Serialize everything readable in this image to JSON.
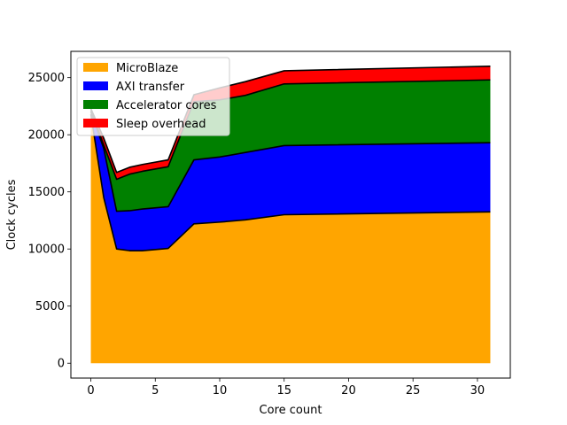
{
  "chart_data": {
    "type": "area",
    "title": "",
    "xlabel": "Core count",
    "ylabel": "Clock cycles",
    "xlim": [
      -1.55,
      32.55
    ],
    "ylim": [
      -1300,
      27300
    ],
    "xticks": [
      0,
      5,
      10,
      15,
      20,
      25,
      30
    ],
    "yticks": [
      0,
      5000,
      10000,
      15000,
      20000,
      25000
    ],
    "x": [
      0,
      1,
      2,
      3,
      4,
      6,
      8,
      10,
      12,
      15,
      31
    ],
    "stacked": true,
    "series": [
      {
        "name": "MicroBlaze",
        "color": "#ffa500",
        "values": [
          21800,
          14500,
          10000,
          9850,
          9850,
          10050,
          12200,
          12350,
          12550,
          13000,
          13250
        ]
      },
      {
        "name": "AXI transfer",
        "color": "#0000ff",
        "values": [
          200,
          4300,
          3300,
          3500,
          3650,
          3650,
          5600,
          5700,
          5900,
          6050,
          6050
        ]
      },
      {
        "name": "Accelerator cores",
        "color": "#008000",
        "values": [
          150,
          300,
          2800,
          3200,
          3300,
          3500,
          5100,
          5000,
          5000,
          5400,
          5500
        ]
      },
      {
        "name": "Sleep overhead",
        "color": "#ff0000",
        "values": [
          150,
          600,
          600,
          600,
          600,
          600,
          600,
          1050,
          1200,
          1150,
          1200
        ]
      }
    ],
    "grid": false,
    "legend": "upper-left"
  }
}
